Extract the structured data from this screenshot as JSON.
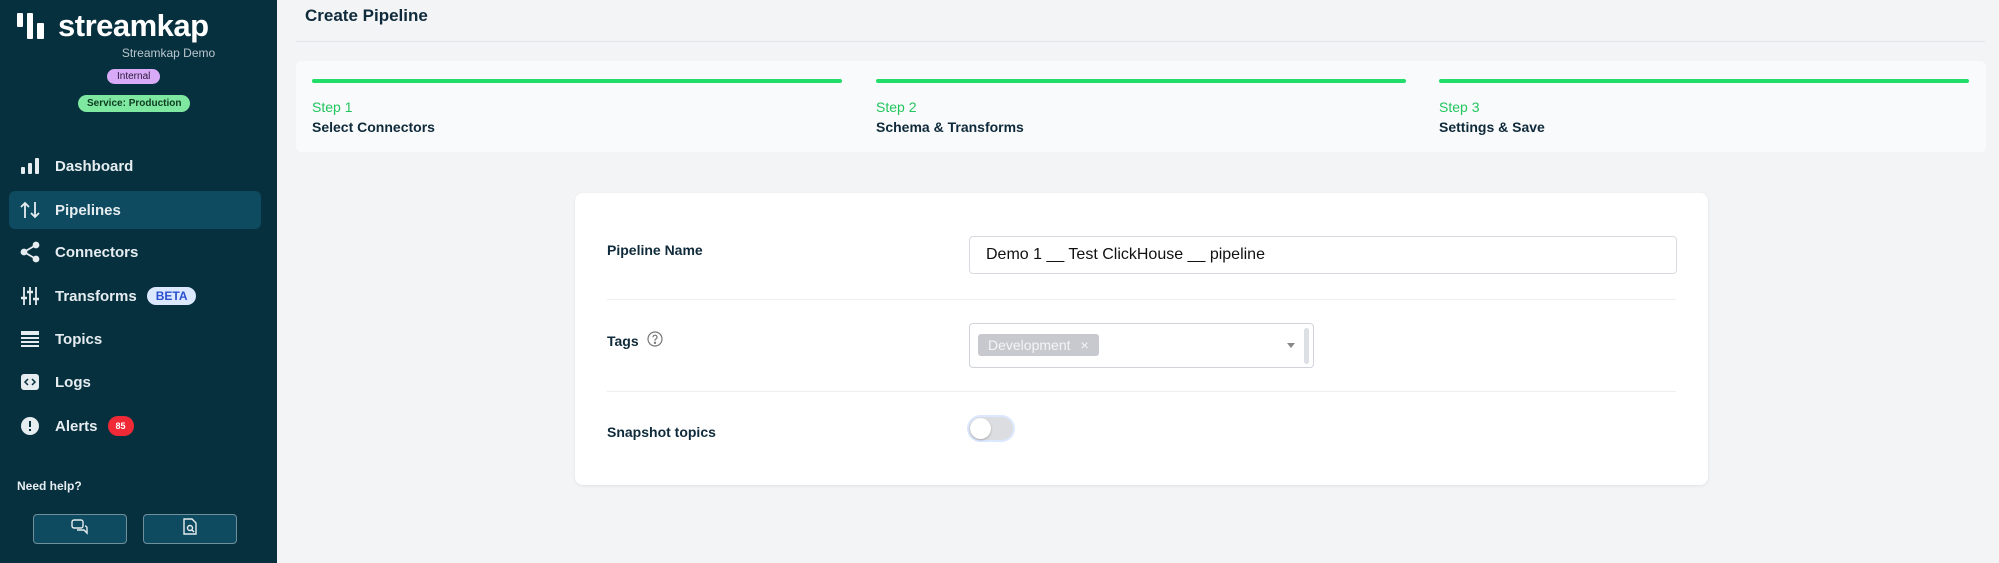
{
  "sidebar": {
    "brand": "streamkap",
    "org": "Streamkap Demo",
    "badge_internal": "Internal",
    "badge_service": "Service: Production",
    "items": [
      {
        "label": "Dashboard",
        "icon": "bar-chart-icon"
      },
      {
        "label": "Pipelines",
        "icon": "arrows-up-down-icon",
        "active": true
      },
      {
        "label": "Connectors",
        "icon": "share-icon"
      },
      {
        "label": "Transforms",
        "icon": "sliders-icon",
        "badge": "BETA"
      },
      {
        "label": "Topics",
        "icon": "list-icon"
      },
      {
        "label": "Logs",
        "icon": "code-icon"
      },
      {
        "label": "Alerts",
        "icon": "alert-icon",
        "badge": "85"
      }
    ],
    "help_label": "Need help?",
    "help_buttons": [
      {
        "icon": "chat-icon"
      },
      {
        "icon": "doc-search-icon"
      }
    ]
  },
  "header": {
    "title": "Create Pipeline"
  },
  "steps": [
    {
      "num": "Step 1",
      "name": "Select Connectors"
    },
    {
      "num": "Step 2",
      "name": "Schema & Transforms"
    },
    {
      "num": "Step 3",
      "name": "Settings & Save"
    }
  ],
  "form": {
    "pipeline_name_label": "Pipeline Name",
    "pipeline_name_value": "Demo 1 __ Test ClickHouse __ pipeline",
    "tags_label": "Tags",
    "tags": [
      "Development"
    ],
    "tag_remove": "×",
    "snapshot_label": "Snapshot topics",
    "snapshot_on": false
  },
  "colors": {
    "sidebar": "#07303f",
    "accent": "#22dd6a",
    "alert": "#ef2a36"
  }
}
